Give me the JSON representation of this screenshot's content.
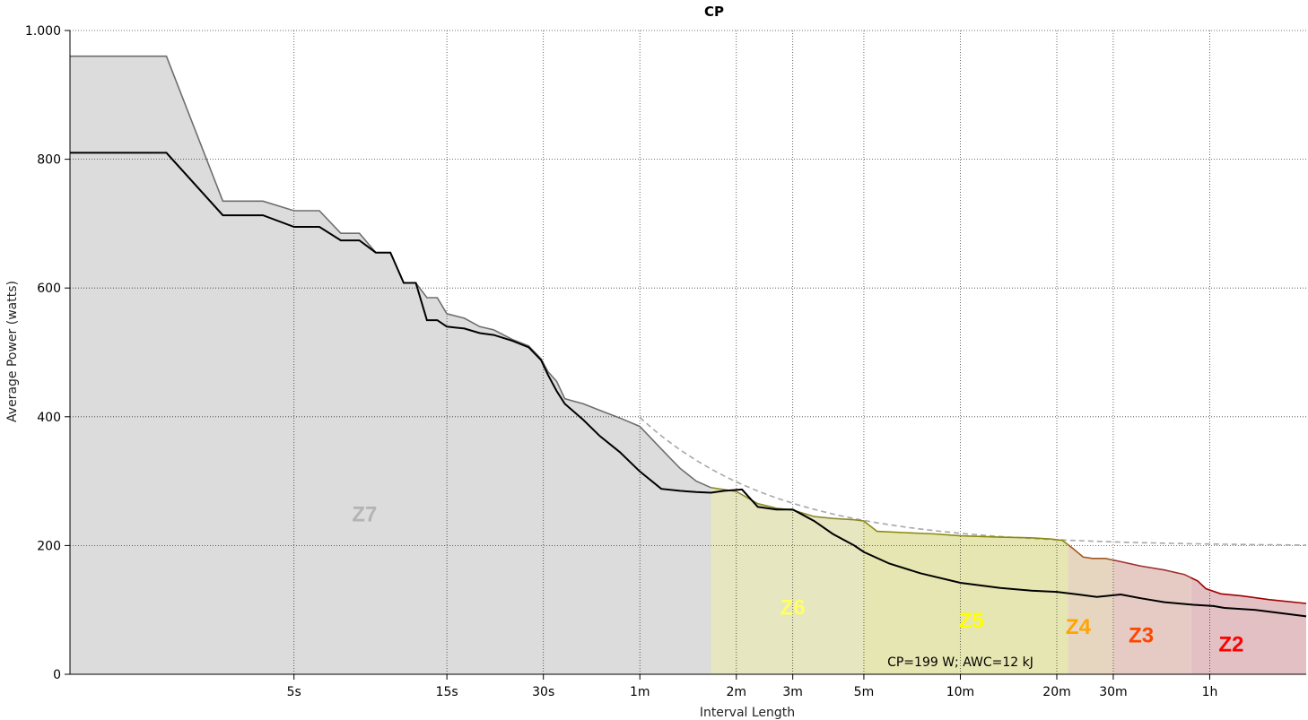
{
  "chart_data": {
    "type": "area",
    "title": "CP",
    "xlabel": "Interval Length",
    "ylabel": "Average Power (watts)",
    "x_scale": "log",
    "x_unit": "seconds",
    "xlim": [
      1,
      7200
    ],
    "ylim": [
      0,
      1000
    ],
    "y_ticks": [
      {
        "value": 0,
        "label": "0"
      },
      {
        "value": 200,
        "label": "200"
      },
      {
        "value": 400,
        "label": "400"
      },
      {
        "value": 600,
        "label": "600"
      },
      {
        "value": 800,
        "label": "800"
      },
      {
        "value": 1000,
        "label": "1.000"
      }
    ],
    "x_ticks": [
      {
        "value": 5,
        "label": "5s"
      },
      {
        "value": 15,
        "label": "15s"
      },
      {
        "value": 30,
        "label": "30s"
      },
      {
        "value": 60,
        "label": "1m"
      },
      {
        "value": 120,
        "label": "2m"
      },
      {
        "value": 180,
        "label": "3m"
      },
      {
        "value": 300,
        "label": "5m"
      },
      {
        "value": 600,
        "label": "10m"
      },
      {
        "value": 1200,
        "label": "20m"
      },
      {
        "value": 1800,
        "label": "30m"
      },
      {
        "value": 3600,
        "label": "1h"
      }
    ],
    "grid": true,
    "series": [
      {
        "role": "best",
        "color": "#707070",
        "points": [
          [
            1,
            960
          ],
          [
            2.0,
            960
          ],
          [
            3.0,
            735
          ],
          [
            4.0,
            735
          ],
          [
            5.0,
            720
          ],
          [
            6.0,
            720
          ],
          [
            7.0,
            685
          ],
          [
            8.0,
            685
          ],
          [
            9.0,
            655
          ],
          [
            10.0,
            655
          ],
          [
            11.0,
            608
          ],
          [
            12.0,
            608
          ],
          [
            13.0,
            585
          ],
          [
            14.0,
            585
          ],
          [
            15.0,
            560
          ],
          [
            17.0,
            553
          ],
          [
            19.0,
            540
          ],
          [
            21.0,
            535
          ],
          [
            24.0,
            520
          ],
          [
            27.0,
            510
          ],
          [
            29.5,
            490
          ],
          [
            31.0,
            470
          ],
          [
            33.0,
            455
          ],
          [
            35.0,
            428
          ],
          [
            40.0,
            420
          ],
          [
            45.0,
            410
          ],
          [
            52.0,
            398
          ],
          [
            60.0,
            385
          ],
          [
            70.0,
            350
          ],
          [
            80.0,
            320
          ],
          [
            90.0,
            300
          ],
          [
            100.0,
            290
          ],
          [
            120.0,
            284
          ],
          [
            140.0,
            265
          ],
          [
            160.0,
            258
          ],
          [
            180.0,
            255
          ],
          [
            210.0,
            245
          ],
          [
            240.0,
            242
          ],
          [
            280.0,
            240
          ],
          [
            300.0,
            238
          ],
          [
            330.0,
            222
          ],
          [
            400.0,
            220
          ],
          [
            500.0,
            218
          ],
          [
            600.0,
            215
          ],
          [
            800.0,
            213
          ],
          [
            1000.0,
            212
          ],
          [
            1150.0,
            210
          ],
          [
            1250.0,
            208
          ],
          [
            1350.0,
            195
          ],
          [
            1450.0,
            182
          ],
          [
            1550.0,
            180
          ],
          [
            1700.0,
            180
          ],
          [
            1900.0,
            175
          ],
          [
            2200.0,
            168
          ],
          [
            2600.0,
            162
          ],
          [
            3000.0,
            155
          ],
          [
            3300.0,
            145
          ],
          [
            3500.0,
            133
          ],
          [
            3900.0,
            125
          ],
          [
            4500.0,
            122
          ],
          [
            5500.0,
            116
          ],
          [
            7200.0,
            110
          ]
        ]
      },
      {
        "role": "current",
        "color": "#000000",
        "points": [
          [
            1,
            810
          ],
          [
            2.0,
            810
          ],
          [
            3.0,
            713
          ],
          [
            4.0,
            713
          ],
          [
            5.0,
            695
          ],
          [
            6.0,
            695
          ],
          [
            7.0,
            674
          ],
          [
            8.0,
            674
          ],
          [
            9.0,
            655
          ],
          [
            10.0,
            655
          ],
          [
            11.0,
            608
          ],
          [
            12.0,
            608
          ],
          [
            13.0,
            550
          ],
          [
            14.0,
            550
          ],
          [
            15.0,
            540
          ],
          [
            17.0,
            537
          ],
          [
            19.0,
            530
          ],
          [
            21.0,
            527
          ],
          [
            24.0,
            518
          ],
          [
            27.0,
            508
          ],
          [
            29.5,
            488
          ],
          [
            31.0,
            465
          ],
          [
            33.0,
            440
          ],
          [
            35.0,
            420
          ],
          [
            40.0,
            395
          ],
          [
            45.0,
            370
          ],
          [
            52.0,
            345
          ],
          [
            60.0,
            315
          ],
          [
            70.0,
            288
          ],
          [
            80.0,
            285
          ],
          [
            90.0,
            283
          ],
          [
            100.0,
            282
          ],
          [
            110.0,
            285
          ],
          [
            125.0,
            287
          ],
          [
            140.0,
            260
          ],
          [
            160.0,
            256
          ],
          [
            180.0,
            256
          ],
          [
            210.0,
            238
          ],
          [
            240.0,
            218
          ],
          [
            280.0,
            200
          ],
          [
            300.0,
            190
          ],
          [
            360.0,
            172
          ],
          [
            450.0,
            157
          ],
          [
            600.0,
            142
          ],
          [
            800.0,
            134
          ],
          [
            1000.0,
            130
          ],
          [
            1200.0,
            128
          ],
          [
            1400.0,
            124
          ],
          [
            1600.0,
            120
          ],
          [
            1900.0,
            124
          ],
          [
            2200.0,
            118
          ],
          [
            2600.0,
            112
          ],
          [
            3200.0,
            108
          ],
          [
            3700.0,
            106
          ],
          [
            4000.0,
            103
          ],
          [
            5000.0,
            100
          ],
          [
            7200.0,
            90
          ]
        ]
      },
      {
        "role": "cp-model",
        "color": "#a8a8a8",
        "dashed": true,
        "cp": 199,
        "awc": 12000,
        "x_start": 60
      }
    ],
    "zones": [
      {
        "label": "Z7",
        "color": "#b4b4b4",
        "fill": "#dcdcdc",
        "x_from": 1,
        "x_to": 100
      },
      {
        "label": "Z6",
        "color": "#ffff66",
        "fill": "#e6e6c0",
        "x_from": 100,
        "x_to": 300
      },
      {
        "label": "Z5",
        "color": "#ffff00",
        "fill": "#e6e6b2",
        "x_from": 300,
        "x_to": 1300
      },
      {
        "label": "Z4",
        "color": "#ffa500",
        "fill": "#e6d6c0",
        "x_from": 1300,
        "x_to": 1800
      },
      {
        "label": "Z3",
        "color": "#ff4500",
        "fill": "#e6cbc4",
        "x_from": 1800,
        "x_to": 3150
      },
      {
        "label": "Z2",
        "color": "#ff0000",
        "fill": "#e3c0c4",
        "x_from": 3150,
        "x_to": 7200
      }
    ],
    "zone_label_values": [
      {
        "label": "Z7",
        "x": 8.3,
        "y": 250
      },
      {
        "label": "Z6",
        "x": 180,
        "y": 105
      },
      {
        "label": "Z5",
        "x": 650,
        "y": 85
      },
      {
        "label": "Z4",
        "x": 1400,
        "y": 75
      },
      {
        "label": "Z3",
        "x": 2200,
        "y": 62
      },
      {
        "label": "Z2",
        "x": 4200,
        "y": 48
      }
    ],
    "annotation": "CP=199 W; AWC=12 kJ",
    "annotation_x": 600
  }
}
